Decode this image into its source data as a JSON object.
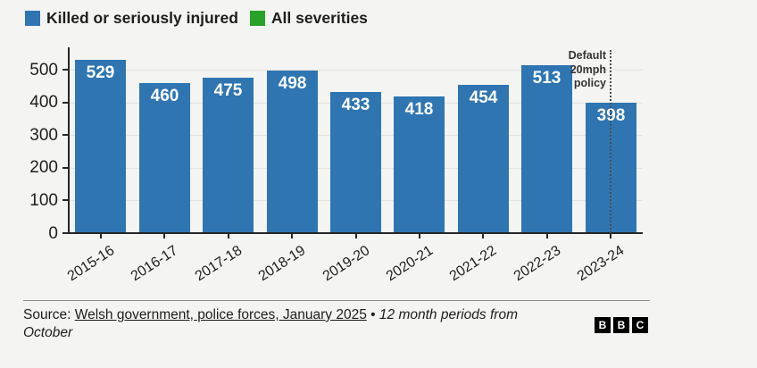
{
  "colors": {
    "bar_blue": "#2e75b2",
    "legend_green": "#28a228",
    "background": "#f4f4f2",
    "axis": "#262626",
    "gridline": "#e4e4e0"
  },
  "legend": {
    "items": [
      {
        "label": "Killed or seriously injured",
        "color": "#2e75b2"
      },
      {
        "label": "All severities",
        "color": "#28a228"
      }
    ]
  },
  "chart_data": {
    "type": "bar",
    "categories": [
      "2015-16",
      "2016-17",
      "2017-18",
      "2018-19",
      "2019-20",
      "2020-21",
      "2021-22",
      "2022-23",
      "2023-24"
    ],
    "series": [
      {
        "name": "Killed or seriously injured",
        "color": "#2e75b2",
        "values": [
          529,
          460,
          475,
          498,
          433,
          418,
          454,
          513,
          398
        ]
      },
      {
        "name": "All severities",
        "color": "#28a228",
        "values": []
      }
    ],
    "title": "",
    "xlabel": "",
    "ylabel": "",
    "ylim": [
      0,
      500
    ],
    "yticks": [
      0,
      100,
      200,
      300,
      400,
      500
    ],
    "grid": true,
    "legend_position": "top-left",
    "bar_labels_shown": true,
    "annotation": {
      "line1": "Default",
      "line2": "20mph",
      "line3": "policy",
      "category": "2023-24",
      "style": "dotted-vertical-line"
    }
  },
  "footer": {
    "source_prefix": "Source: ",
    "source_link": "Welsh government, police forces, January 2025",
    "separator": " • ",
    "source_note": "12 month periods from October",
    "logo_letters": {
      "b1": "B",
      "b2": "B",
      "b3": "C"
    }
  }
}
